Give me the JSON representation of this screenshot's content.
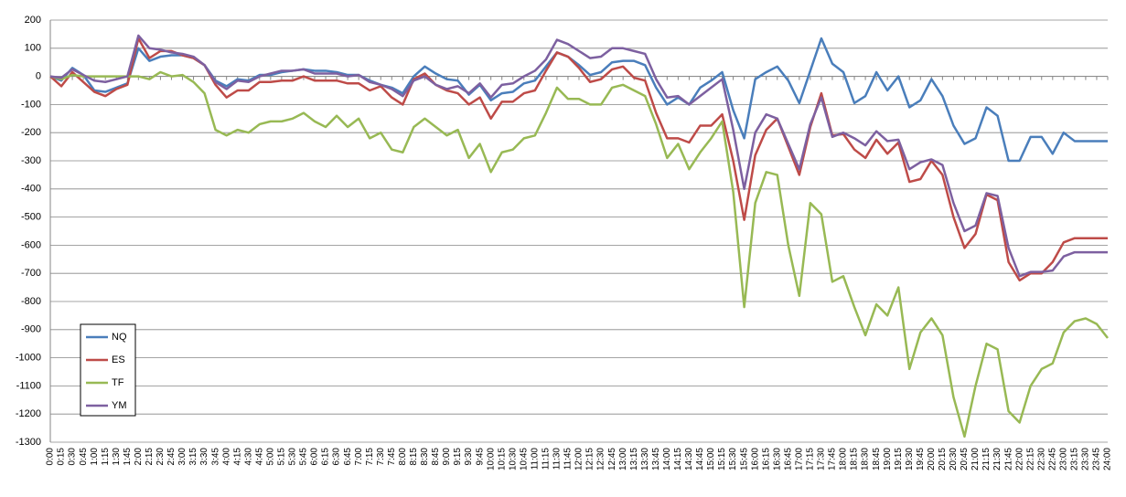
{
  "chart_data": {
    "type": "line",
    "categories": [
      "0:00",
      "0:15",
      "0:30",
      "0:45",
      "1:00",
      "1:15",
      "1:30",
      "1:45",
      "2:00",
      "2:15",
      "2:30",
      "2:45",
      "3:00",
      "3:15",
      "3:30",
      "3:45",
      "4:00",
      "4:15",
      "4:30",
      "4:45",
      "5:00",
      "5:15",
      "5:30",
      "5:45",
      "6:00",
      "6:15",
      "6:30",
      "6:45",
      "7:00",
      "7:15",
      "7:30",
      "7:45",
      "8:00",
      "8:15",
      "8:30",
      "8:45",
      "9:00",
      "9:15",
      "9:30",
      "9:45",
      "10:00",
      "10:15",
      "10:30",
      "10:45",
      "11:00",
      "11:15",
      "11:30",
      "11:45",
      "12:00",
      "12:15",
      "12:30",
      "12:45",
      "13:00",
      "13:15",
      "13:30",
      "13:45",
      "14:00",
      "14:15",
      "14:30",
      "14:45",
      "15:00",
      "15:15",
      "15:30",
      "15:45",
      "16:00",
      "16:15",
      "16:30",
      "16:45",
      "17:00",
      "17:15",
      "17:30",
      "17:45",
      "18:00",
      "18:15",
      "18:30",
      "18:45",
      "19:00",
      "19:15",
      "19:30",
      "19:45",
      "20:00",
      "20:15",
      "20:30",
      "20:45",
      "21:00",
      "21:15",
      "21:30",
      "21:45",
      "22:00",
      "22:15",
      "22:30",
      "22:45",
      "23:00",
      "23:15",
      "23:30",
      "23:45",
      "24:00"
    ],
    "series": [
      {
        "name": "NQ",
        "color": "#4a7ebb",
        "values": [
          0,
          -15,
          30,
          5,
          -50,
          -55,
          -40,
          -25,
          100,
          55,
          70,
          75,
          75,
          65,
          40,
          -15,
          -35,
          -10,
          -15,
          5,
          5,
          15,
          20,
          25,
          20,
          20,
          15,
          5,
          5,
          -15,
          -30,
          -40,
          -60,
          0,
          35,
          10,
          -10,
          -15,
          -65,
          -30,
          -85,
          -60,
          -55,
          -25,
          -15,
          35,
          85,
          70,
          40,
          5,
          15,
          50,
          55,
          55,
          40,
          -40,
          -100,
          -75,
          -100,
          -40,
          -15,
          15,
          -120,
          -220,
          -10,
          15,
          35,
          -15,
          -95,
          20,
          135,
          45,
          15,
          -95,
          -70,
          15,
          -50,
          0,
          -110,
          -85,
          -10,
          -70,
          -175,
          -240,
          -220,
          -110,
          -140,
          -300,
          -300,
          -215,
          -215,
          -275,
          -200,
          -230,
          -230,
          -230,
          -230
        ]
      },
      {
        "name": "ES",
        "color": "#be4b48",
        "values": [
          0,
          -35,
          15,
          -20,
          -55,
          -70,
          -45,
          -30,
          135,
          65,
          90,
          90,
          75,
          65,
          40,
          -30,
          -75,
          -50,
          -50,
          -20,
          -20,
          -15,
          -15,
          0,
          -15,
          -15,
          -15,
          -25,
          -25,
          -50,
          -35,
          -75,
          -100,
          -10,
          10,
          -30,
          -50,
          -60,
          -100,
          -75,
          -150,
          -90,
          -90,
          -60,
          -50,
          20,
          85,
          70,
          30,
          -20,
          -10,
          25,
          35,
          -5,
          -15,
          -130,
          -220,
          -220,
          -235,
          -175,
          -175,
          -135,
          -300,
          -510,
          -280,
          -190,
          -150,
          -250,
          -350,
          -180,
          -60,
          -210,
          -205,
          -260,
          -290,
          -225,
          -275,
          -235,
          -375,
          -365,
          -300,
          -350,
          -500,
          -610,
          -560,
          -420,
          -440,
          -660,
          -725,
          -700,
          -700,
          -660,
          -590,
          -575,
          -575,
          -575,
          -575
        ]
      },
      {
        "name": "TF",
        "color": "#98b954",
        "values": [
          0,
          -10,
          5,
          0,
          0,
          0,
          0,
          0,
          0,
          -10,
          15,
          0,
          5,
          -20,
          -60,
          -190,
          -210,
          -190,
          -200,
          -170,
          -160,
          -160,
          -150,
          -130,
          -160,
          -180,
          -140,
          -180,
          -150,
          -220,
          -200,
          -260,
          -270,
          -180,
          -150,
          -180,
          -210,
          -190,
          -290,
          -240,
          -340,
          -270,
          -260,
          -220,
          -210,
          -130,
          -40,
          -80,
          -80,
          -100,
          -100,
          -40,
          -30,
          -50,
          -70,
          -170,
          -290,
          -240,
          -330,
          -270,
          -220,
          -160,
          -410,
          -820,
          -450,
          -340,
          -350,
          -600,
          -780,
          -450,
          -490,
          -730,
          -710,
          -820,
          -920,
          -810,
          -850,
          -750,
          -1040,
          -910,
          -860,
          -920,
          -1140,
          -1280,
          -1100,
          -950,
          -970,
          -1190,
          -1230,
          -1100,
          -1040,
          -1020,
          -910,
          -870,
          -860,
          -880,
          -930
        ]
      },
      {
        "name": "YM",
        "color": "#7d60a0",
        "values": [
          0,
          -5,
          25,
          5,
          -15,
          -20,
          -10,
          0,
          145,
          100,
          95,
          85,
          80,
          70,
          40,
          -20,
          -45,
          -15,
          -20,
          0,
          10,
          20,
          20,
          25,
          10,
          10,
          10,
          0,
          5,
          -20,
          -30,
          -45,
          -70,
          -15,
          0,
          -30,
          -45,
          -35,
          -60,
          -25,
          -75,
          -30,
          -25,
          0,
          20,
          60,
          130,
          115,
          90,
          65,
          70,
          100,
          100,
          90,
          80,
          -10,
          -75,
          -70,
          -100,
          -70,
          -40,
          -10,
          -190,
          -400,
          -200,
          -135,
          -150,
          -240,
          -330,
          -170,
          -75,
          -215,
          -200,
          -220,
          -245,
          -195,
          -230,
          -225,
          -330,
          -305,
          -295,
          -315,
          -450,
          -550,
          -530,
          -415,
          -425,
          -610,
          -710,
          -695,
          -695,
          -690,
          -640,
          -625,
          -625,
          -625,
          -625
        ]
      }
    ],
    "ylim": [
      -1300,
      200
    ],
    "yticks": [
      200,
      100,
      0,
      -100,
      -200,
      -300,
      -400,
      -500,
      -600,
      -700,
      -800,
      -900,
      -1000,
      -1100,
      -1200,
      -1300
    ],
    "grid": true,
    "legend": "lower-left"
  }
}
